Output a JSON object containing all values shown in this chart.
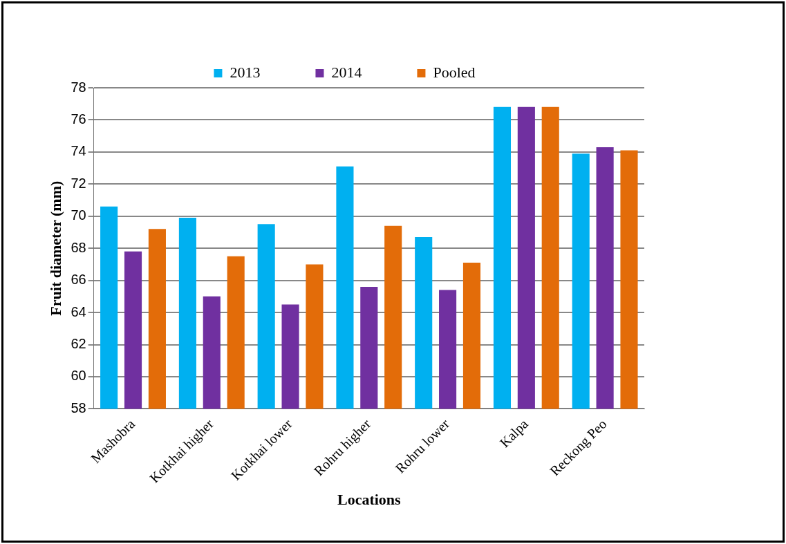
{
  "chart_data": {
    "type": "bar",
    "xlabel": "Locations",
    "ylabel": "Fruit diameter (mm)",
    "categories": [
      "Mashobra",
      "Kotkhai higher",
      "Kotkhai lower",
      "Rohru higher",
      "Rohru lower",
      "Kalpa",
      "Reckong Peo"
    ],
    "series": [
      {
        "name": "2013",
        "color": "#00b0f0",
        "values": [
          70.6,
          69.9,
          69.5,
          73.1,
          68.7,
          76.8,
          73.9
        ]
      },
      {
        "name": "2014",
        "color": "#7030a0",
        "values": [
          67.8,
          65.0,
          64.5,
          65.6,
          65.4,
          76.8,
          74.3
        ]
      },
      {
        "name": "Pooled",
        "color": "#e36c09",
        "values": [
          69.2,
          67.5,
          67.0,
          69.4,
          67.1,
          76.8,
          74.1
        ]
      }
    ],
    "ylim": [
      58,
      78
    ],
    "yticks": [
      58,
      60,
      62,
      64,
      66,
      68,
      70,
      72,
      74,
      76,
      78
    ],
    "grid": "y",
    "legend": "top"
  }
}
